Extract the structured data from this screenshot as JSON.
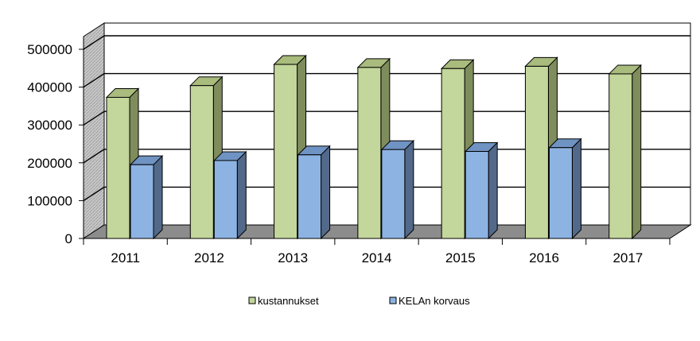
{
  "chart_data": {
    "type": "bar",
    "title": "",
    "xlabel": "",
    "ylabel": "",
    "categories": [
      "2011",
      "2012",
      "2013",
      "2014",
      "2015",
      "2016",
      "2017"
    ],
    "series": [
      {
        "name": "kustannukset",
        "values": [
          373000,
          404000,
          460000,
          452000,
          449000,
          455000,
          435000
        ]
      },
      {
        "name": "KELAn korvaus",
        "values": [
          195000,
          206000,
          221000,
          235000,
          230000,
          240000,
          null
        ]
      }
    ],
    "ylim": [
      0,
      500000
    ],
    "yticks": [
      "0",
      "100000",
      "200000",
      "300000",
      "400000",
      "500000"
    ],
    "grid": true,
    "legend_position": "bottom",
    "colors": {
      "series1_front": "#c3d69b",
      "series1_side": "#7f8c5c",
      "series1_top": "#a9bb7d",
      "series2_front": "#8db3e2",
      "series2_side": "#52698a",
      "series2_top": "#6f93c2",
      "back_wall": "#ffffff",
      "side_wall": "#c0c0c0",
      "floor": "#8c8c8c"
    }
  }
}
